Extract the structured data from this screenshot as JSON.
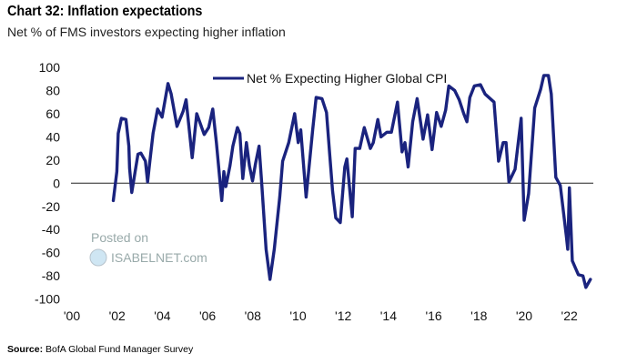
{
  "header": {
    "title": "Chart 32: Inflation expectations",
    "subtitle": "Net % of FMS investors expecting higher inflation"
  },
  "footer": {
    "source_label": "Source:",
    "source_text": "BofA Global Fund Manager Survey"
  },
  "watermark": {
    "line1": "Posted on",
    "line2": "ISABELNET.com"
  },
  "chart_data": {
    "type": "line",
    "title": "Chart 32: Inflation expectations",
    "subtitle": "Net % of FMS investors expecting higher inflation",
    "xlabel": "",
    "ylabel": "",
    "xlim": [
      2000,
      2023.1
    ],
    "ylim": [
      -100,
      100
    ],
    "yticks": [
      100,
      80,
      60,
      40,
      20,
      0,
      -20,
      -40,
      -60,
      -80,
      -100
    ],
    "ytick_labels": [
      "100",
      "80",
      "60",
      "40",
      "20",
      "0",
      "-20",
      "-40",
      "-60",
      "-80",
      "-100"
    ],
    "xticks": [
      2000,
      2002,
      2004,
      2006,
      2008,
      2010,
      2012,
      2014,
      2016,
      2018,
      2020,
      2022
    ],
    "xtick_labels": [
      "'00",
      "'02",
      "'04",
      "'06",
      "'08",
      "'10",
      "'12",
      "'14",
      "'16",
      "'18",
      "'20",
      "'22"
    ],
    "grid": false,
    "zero_line": true,
    "legend_placement": "top-center",
    "series": [
      {
        "name": "Net % Expecting Higher Global CPI",
        "color": "#1a237e",
        "points": [
          [
            2001.87,
            -15
          ],
          [
            2002.03,
            10
          ],
          [
            2002.09,
            43
          ],
          [
            2002.23,
            56
          ],
          [
            2002.43,
            55
          ],
          [
            2002.56,
            32
          ],
          [
            2002.59,
            13
          ],
          [
            2002.69,
            -8
          ],
          [
            2002.96,
            25
          ],
          [
            2003.09,
            26
          ],
          [
            2003.29,
            19
          ],
          [
            2003.39,
            1
          ],
          [
            2003.49,
            19
          ],
          [
            2003.63,
            43
          ],
          [
            2003.83,
            64
          ],
          [
            2004.03,
            57
          ],
          [
            2004.29,
            86
          ],
          [
            2004.43,
            77
          ],
          [
            2004.69,
            49
          ],
          [
            2004.96,
            62
          ],
          [
            2005.09,
            72
          ],
          [
            2005.36,
            22
          ],
          [
            2005.56,
            60
          ],
          [
            2005.89,
            42
          ],
          [
            2006.09,
            48
          ],
          [
            2006.27,
            64
          ],
          [
            2006.43,
            35
          ],
          [
            2006.67,
            -15
          ],
          [
            2006.76,
            10
          ],
          [
            2006.85,
            -3
          ],
          [
            2007.03,
            15
          ],
          [
            2007.16,
            32
          ],
          [
            2007.36,
            48
          ],
          [
            2007.47,
            43
          ],
          [
            2007.6,
            4
          ],
          [
            2007.76,
            35
          ],
          [
            2007.89,
            15
          ],
          [
            2008.03,
            2
          ],
          [
            2008.16,
            17
          ],
          [
            2008.32,
            32
          ],
          [
            2008.43,
            1
          ],
          [
            2008.63,
            -57
          ],
          [
            2008.8,
            -83
          ],
          [
            2008.99,
            -57
          ],
          [
            2009.23,
            -12
          ],
          [
            2009.36,
            19
          ],
          [
            2009.63,
            35
          ],
          [
            2009.89,
            60
          ],
          [
            2010.05,
            35
          ],
          [
            2010.16,
            46
          ],
          [
            2010.4,
            -12
          ],
          [
            2010.69,
            46
          ],
          [
            2010.84,
            74
          ],
          [
            2011.1,
            73
          ],
          [
            2011.3,
            61
          ],
          [
            2011.44,
            25
          ],
          [
            2011.57,
            -7
          ],
          [
            2011.71,
            -30
          ],
          [
            2011.91,
            -34
          ],
          [
            2012.11,
            14
          ],
          [
            2012.2,
            21
          ],
          [
            2012.44,
            -29
          ],
          [
            2012.57,
            30
          ],
          [
            2012.77,
            30
          ],
          [
            2012.97,
            48
          ],
          [
            2013.24,
            30
          ],
          [
            2013.37,
            35
          ],
          [
            2013.57,
            55
          ],
          [
            2013.71,
            40
          ],
          [
            2013.97,
            44
          ],
          [
            2014.17,
            44
          ],
          [
            2014.44,
            70
          ],
          [
            2014.64,
            27
          ],
          [
            2014.77,
            35
          ],
          [
            2014.91,
            14
          ],
          [
            2015.11,
            53
          ],
          [
            2015.31,
            73
          ],
          [
            2015.57,
            38
          ],
          [
            2015.77,
            59
          ],
          [
            2015.97,
            29
          ],
          [
            2016.17,
            61
          ],
          [
            2016.37,
            49
          ],
          [
            2016.57,
            63
          ],
          [
            2016.71,
            84
          ],
          [
            2016.97,
            80
          ],
          [
            2017.17,
            72
          ],
          [
            2017.37,
            60
          ],
          [
            2017.51,
            53
          ],
          [
            2017.64,
            74
          ],
          [
            2017.84,
            84
          ],
          [
            2018.11,
            85
          ],
          [
            2018.31,
            77
          ],
          [
            2018.71,
            70
          ],
          [
            2018.91,
            19
          ],
          [
            2019.11,
            35
          ],
          [
            2019.24,
            35
          ],
          [
            2019.37,
            1
          ],
          [
            2019.64,
            12
          ],
          [
            2019.91,
            56
          ],
          [
            2020.04,
            -32
          ],
          [
            2020.24,
            -9
          ],
          [
            2020.51,
            65
          ],
          [
            2020.77,
            81
          ],
          [
            2020.91,
            93
          ],
          [
            2021.11,
            93
          ],
          [
            2021.24,
            77
          ],
          [
            2021.44,
            5
          ],
          [
            2021.64,
            -2
          ],
          [
            2021.91,
            -46
          ],
          [
            2021.97,
            -57
          ],
          [
            2022.04,
            -4
          ],
          [
            2022.17,
            -67
          ],
          [
            2022.44,
            -79
          ],
          [
            2022.64,
            -80
          ],
          [
            2022.77,
            -90
          ],
          [
            2022.97,
            -83
          ]
        ]
      }
    ]
  }
}
